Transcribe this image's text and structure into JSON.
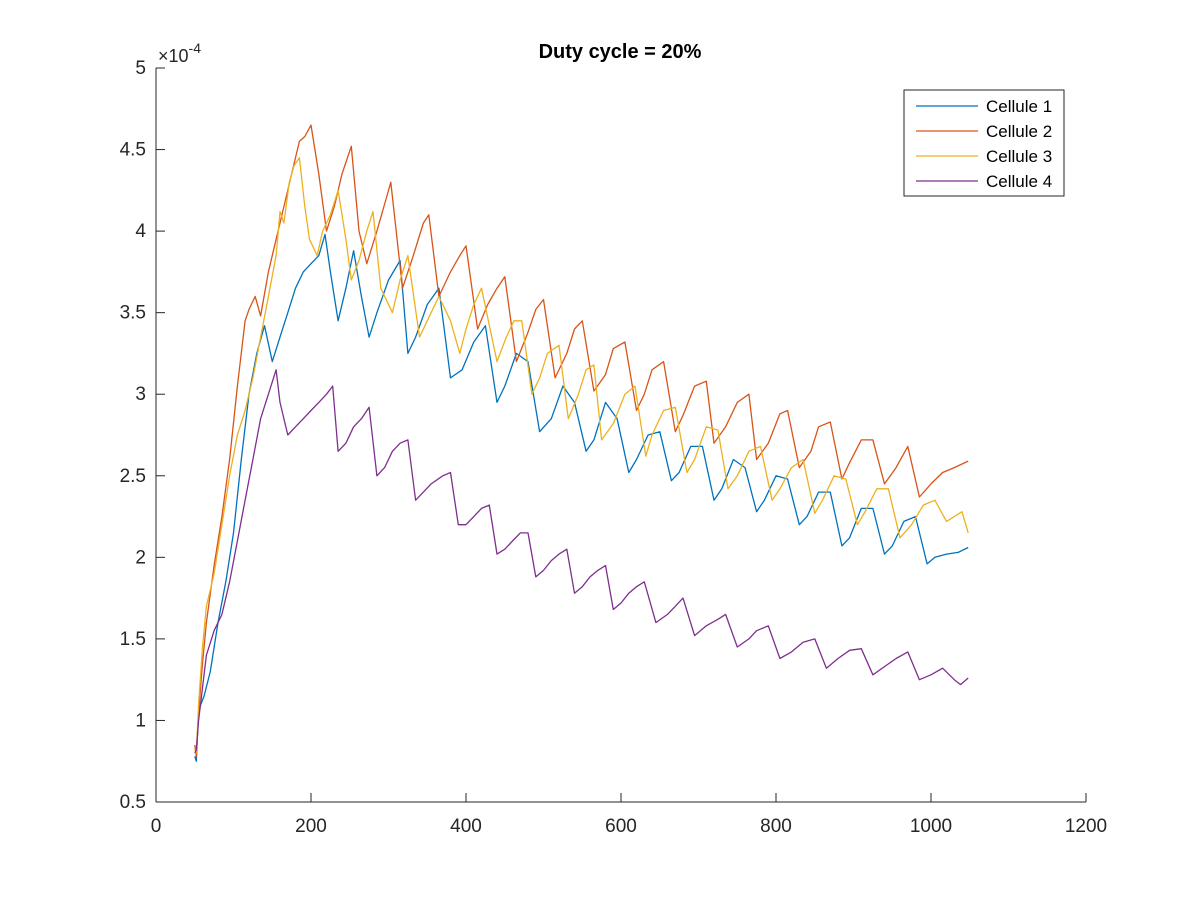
{
  "chart_data": {
    "type": "line",
    "title": "Duty cycle = 20%",
    "xlabel": "",
    "ylabel": "",
    "xlim": [
      0,
      1200
    ],
    "ylim": [
      0.5,
      5
    ],
    "y_exponent_label": "×10",
    "y_exponent_power": "-4",
    "xticks": [
      0,
      200,
      400,
      600,
      800,
      1000,
      1200
    ],
    "xtick_labels": [
      "0",
      "200",
      "400",
      "600",
      "800",
      "1000",
      "1200"
    ],
    "yticks": [
      0.5,
      1,
      1.5,
      2,
      2.5,
      3,
      3.5,
      4,
      4.5,
      5
    ],
    "ytick_labels": [
      "0.5",
      "1",
      "1.5",
      "2",
      "2.5",
      "3",
      "3.5",
      "4",
      "4.5",
      "5"
    ],
    "grid": false,
    "legend_position": "top-right",
    "series": [
      {
        "name": "Cellule 1",
        "color": "#0072BD",
        "x": [
          50,
          52,
          55,
          58,
          62,
          70,
          80,
          90,
          100,
          110,
          120,
          130,
          140,
          150,
          160,
          170,
          180,
          190,
          200,
          210,
          218,
          225,
          235,
          245,
          255,
          265,
          275,
          285,
          300,
          315,
          325,
          335,
          350,
          365,
          380,
          395,
          410,
          425,
          440,
          450,
          465,
          480,
          495,
          510,
          525,
          540,
          555,
          565,
          580,
          595,
          610,
          620,
          635,
          650,
          665,
          675,
          690,
          705,
          720,
          730,
          745,
          760,
          775,
          785,
          800,
          815,
          830,
          840,
          855,
          870,
          885,
          895,
          910,
          925,
          940,
          950,
          965,
          980,
          995,
          1005,
          1020,
          1035,
          1048
        ],
        "y": [
          0.78,
          0.75,
          1.05,
          1.1,
          1.15,
          1.3,
          1.6,
          1.85,
          2.15,
          2.6,
          3.0,
          3.25,
          3.42,
          3.2,
          3.35,
          3.5,
          3.65,
          3.75,
          3.8,
          3.85,
          3.98,
          3.75,
          3.45,
          3.65,
          3.88,
          3.6,
          3.35,
          3.5,
          3.7,
          3.82,
          3.25,
          3.35,
          3.55,
          3.65,
          3.1,
          3.15,
          3.32,
          3.42,
          2.95,
          3.05,
          3.25,
          3.2,
          2.77,
          2.85,
          3.05,
          2.95,
          2.65,
          2.72,
          2.95,
          2.85,
          2.52,
          2.6,
          2.75,
          2.77,
          2.47,
          2.52,
          2.68,
          2.68,
          2.35,
          2.42,
          2.6,
          2.55,
          2.28,
          2.35,
          2.5,
          2.48,
          2.2,
          2.25,
          2.4,
          2.4,
          2.07,
          2.12,
          2.3,
          2.3,
          2.02,
          2.07,
          2.22,
          2.25,
          1.96,
          2.0,
          2.02,
          2.03,
          2.06
        ]
      },
      {
        "name": "Cellule 2",
        "color": "#D95319",
        "x": [
          50,
          52,
          55,
          60,
          65,
          75,
          85,
          95,
          105,
          115,
          120,
          128,
          135,
          145,
          155,
          165,
          175,
          185,
          192,
          200,
          210,
          220,
          230,
          240,
          252,
          262,
          272,
          285,
          297,
          303,
          318,
          332,
          345,
          352,
          365,
          380,
          392,
          400,
          415,
          428,
          440,
          450,
          465,
          480,
          490,
          500,
          515,
          530,
          540,
          550,
          565,
          580,
          590,
          605,
          620,
          630,
          640,
          655,
          670,
          680,
          695,
          710,
          720,
          735,
          750,
          765,
          775,
          790,
          805,
          815,
          830,
          845,
          855,
          870,
          885,
          895,
          910,
          925,
          940,
          955,
          970,
          985,
          1000,
          1015,
          1030,
          1048
        ],
        "y": [
          0.85,
          0.78,
          1.05,
          1.35,
          1.6,
          1.95,
          2.25,
          2.6,
          3.05,
          3.45,
          3.52,
          3.6,
          3.48,
          3.75,
          3.95,
          4.15,
          4.35,
          4.55,
          4.58,
          4.65,
          4.35,
          4.0,
          4.15,
          4.35,
          4.52,
          4.0,
          3.8,
          4.0,
          4.2,
          4.3,
          3.65,
          3.85,
          4.05,
          4.1,
          3.6,
          3.75,
          3.85,
          3.91,
          3.4,
          3.55,
          3.65,
          3.72,
          3.2,
          3.38,
          3.52,
          3.58,
          3.1,
          3.25,
          3.4,
          3.45,
          3.02,
          3.12,
          3.28,
          3.32,
          2.9,
          3.0,
          3.15,
          3.2,
          2.77,
          2.87,
          3.05,
          3.08,
          2.7,
          2.8,
          2.95,
          3.0,
          2.6,
          2.7,
          2.88,
          2.9,
          2.55,
          2.65,
          2.8,
          2.83,
          2.48,
          2.58,
          2.72,
          2.72,
          2.45,
          2.55,
          2.68,
          2.37,
          2.45,
          2.52,
          2.55,
          2.59
        ]
      },
      {
        "name": "Cellule 3",
        "color": "#EDB120",
        "x": [
          50,
          52,
          55,
          60,
          65,
          75,
          85,
          95,
          105,
          115,
          125,
          135,
          145,
          155,
          160,
          165,
          172,
          178,
          185,
          192,
          198,
          208,
          215,
          225,
          235,
          245,
          252,
          262,
          272,
          280,
          290,
          305,
          315,
          325,
          340,
          355,
          365,
          380,
          392,
          400,
          410,
          420,
          440,
          452,
          462,
          472,
          485,
          495,
          505,
          520,
          532,
          545,
          555,
          565,
          575,
          590,
          605,
          618,
          632,
          640,
          655,
          670,
          685,
          695,
          710,
          725,
          738,
          750,
          765,
          780,
          795,
          805,
          820,
          835,
          850,
          860,
          875,
          890,
          905,
          915,
          930,
          945,
          960,
          975,
          990,
          1005,
          1020,
          1040,
          1048
        ],
        "y": [
          0.82,
          0.8,
          1.1,
          1.45,
          1.7,
          1.9,
          2.2,
          2.5,
          2.75,
          2.9,
          3.1,
          3.35,
          3.6,
          3.85,
          4.12,
          4.05,
          4.3,
          4.4,
          4.45,
          4.15,
          3.95,
          3.85,
          4.0,
          4.1,
          4.25,
          3.95,
          3.7,
          3.82,
          4.0,
          4.12,
          3.65,
          3.5,
          3.7,
          3.85,
          3.35,
          3.5,
          3.6,
          3.45,
          3.25,
          3.4,
          3.55,
          3.65,
          3.2,
          3.35,
          3.45,
          3.45,
          3.0,
          3.1,
          3.25,
          3.3,
          2.85,
          3.0,
          3.15,
          3.18,
          2.72,
          2.82,
          3.0,
          3.05,
          2.62,
          2.75,
          2.9,
          2.92,
          2.52,
          2.6,
          2.8,
          2.78,
          2.42,
          2.5,
          2.65,
          2.68,
          2.35,
          2.42,
          2.55,
          2.6,
          2.27,
          2.35,
          2.5,
          2.48,
          2.2,
          2.28,
          2.42,
          2.42,
          2.12,
          2.2,
          2.32,
          2.35,
          2.22,
          2.28,
          2.15
        ]
      },
      {
        "name": "Cellule 4",
        "color": "#7E2F8E",
        "x": [
          50,
          52,
          55,
          60,
          65,
          75,
          85,
          95,
          105,
          115,
          125,
          135,
          145,
          155,
          160,
          170,
          180,
          190,
          200,
          210,
          220,
          228,
          235,
          245,
          255,
          265,
          275,
          285,
          295,
          305,
          315,
          325,
          335,
          345,
          355,
          370,
          380,
          390,
          400,
          410,
          420,
          430,
          440,
          450,
          460,
          470,
          480,
          490,
          500,
          510,
          520,
          530,
          540,
          550,
          560,
          570,
          580,
          590,
          600,
          610,
          620,
          630,
          645,
          660,
          670,
          680,
          695,
          710,
          725,
          735,
          750,
          765,
          775,
          790,
          805,
          820,
          835,
          850,
          865,
          880,
          895,
          910,
          925,
          940,
          955,
          970,
          985,
          1000,
          1015,
          1030,
          1038,
          1048
        ],
        "y": [
          0.8,
          0.82,
          1.0,
          1.2,
          1.4,
          1.55,
          1.65,
          1.85,
          2.1,
          2.35,
          2.6,
          2.85,
          3.0,
          3.15,
          2.95,
          2.75,
          2.8,
          2.85,
          2.9,
          2.95,
          3.0,
          3.05,
          2.65,
          2.7,
          2.8,
          2.85,
          2.92,
          2.5,
          2.55,
          2.65,
          2.7,
          2.72,
          2.35,
          2.4,
          2.45,
          2.5,
          2.52,
          2.2,
          2.2,
          2.25,
          2.3,
          2.32,
          2.02,
          2.05,
          2.1,
          2.15,
          2.15,
          1.88,
          1.92,
          1.98,
          2.02,
          2.05,
          1.78,
          1.82,
          1.88,
          1.92,
          1.95,
          1.68,
          1.72,
          1.78,
          1.82,
          1.85,
          1.6,
          1.65,
          1.7,
          1.75,
          1.52,
          1.58,
          1.62,
          1.65,
          1.45,
          1.5,
          1.55,
          1.58,
          1.38,
          1.42,
          1.48,
          1.5,
          1.32,
          1.38,
          1.43,
          1.44,
          1.28,
          1.33,
          1.38,
          1.42,
          1.25,
          1.28,
          1.32,
          1.25,
          1.22,
          1.26
        ]
      }
    ]
  }
}
